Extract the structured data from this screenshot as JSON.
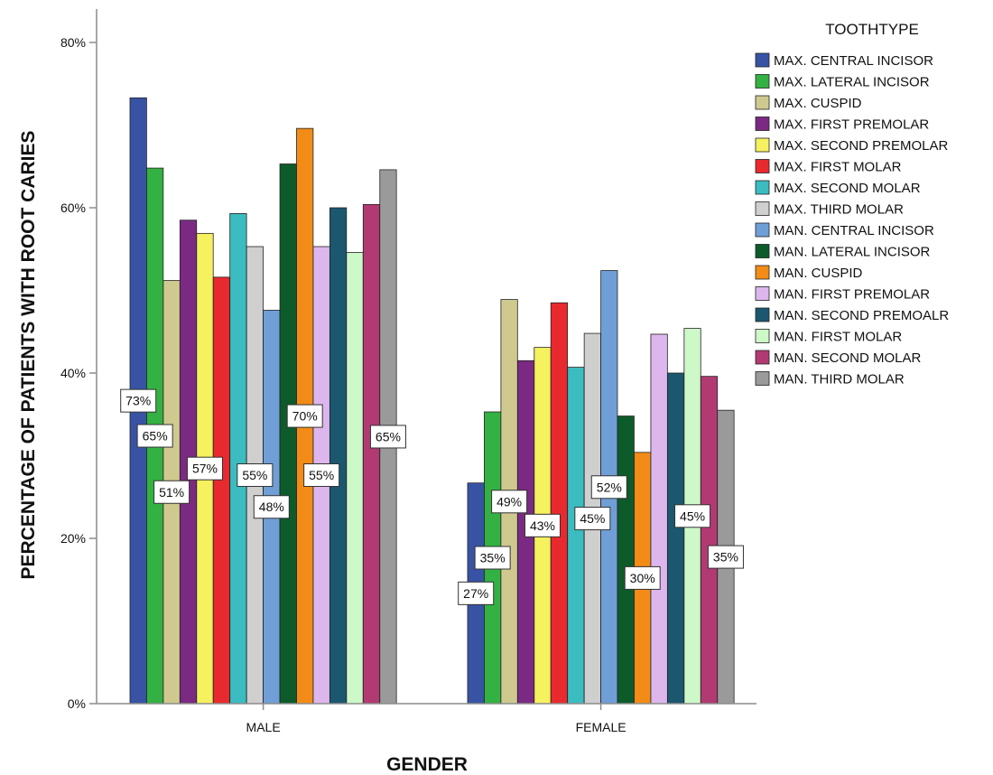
{
  "chart_data": {
    "type": "bar",
    "xlabel": "GENDER",
    "ylabel": "PERCENTAGE OF PATIENTS WITH ROOT CARIES",
    "ylim": [
      0,
      80
    ],
    "y_ticks": [
      "0%",
      "20%",
      "40%",
      "60%",
      "80%"
    ],
    "categories": [
      "MALE",
      "FEMALE"
    ],
    "legend_title": "TOOTHTYPE",
    "legend_position": "right",
    "series": [
      {
        "name": "MAX. CENTRAL INCISOR",
        "color": "#3853a4",
        "values": [
          73.3,
          26.7
        ],
        "labels": [
          "73%",
          "27%"
        ]
      },
      {
        "name": "MAX. LATERAL INCISOR",
        "color": "#33b143",
        "values": [
          64.8,
          35.3
        ],
        "labels": [
          "65%",
          "35%"
        ]
      },
      {
        "name": "MAX. CUSPID",
        "color": "#cfc98f",
        "values": [
          51.2,
          48.9
        ],
        "labels": [
          "51%",
          "49%"
        ]
      },
      {
        "name": "MAX. FIRST PREMOLAR",
        "color": "#7b2a83",
        "values": [
          58.5,
          41.5
        ],
        "labels": [
          null,
          null
        ]
      },
      {
        "name": "MAX. SECOND PREMOLAR",
        "color": "#f5f15f",
        "values": [
          56.9,
          43.1
        ],
        "labels": [
          "57%",
          "43%"
        ]
      },
      {
        "name": "MAX. FIRST MOLAR",
        "color": "#e82a2f",
        "values": [
          51.6,
          48.5
        ],
        "labels": [
          null,
          null
        ]
      },
      {
        "name": "MAX. SECOND MOLAR",
        "color": "#3bbcc0",
        "values": [
          59.3,
          40.7
        ],
        "labels": [
          null,
          null
        ]
      },
      {
        "name": "MAX. THIRD MOLAR",
        "color": "#cfcfcf",
        "values": [
          55.3,
          44.8
        ],
        "labels": [
          "55%",
          "45%"
        ]
      },
      {
        "name": "MAN. CENTRAL INCISOR",
        "color": "#6f9fd6",
        "values": [
          47.6,
          52.4
        ],
        "labels": [
          "48%",
          "52%"
        ]
      },
      {
        "name": "MAN. LATERAL INCISOR",
        "color": "#0d5b2a",
        "values": [
          65.3,
          34.8
        ],
        "labels": [
          null,
          null
        ]
      },
      {
        "name": "MAN. CUSPID",
        "color": "#f28c16",
        "values": [
          69.6,
          30.4
        ],
        "labels": [
          "70%",
          "30%"
        ]
      },
      {
        "name": "MAN. FIRST PREMOLAR",
        "color": "#dcb6ec",
        "values": [
          55.3,
          44.7
        ],
        "labels": [
          "55%",
          null
        ]
      },
      {
        "name": "MAN. SECOND PREMOALR",
        "color": "#1b5870",
        "values": [
          60.0,
          40.0
        ],
        "labels": [
          null,
          null
        ]
      },
      {
        "name": "MAN. FIRST MOLAR",
        "color": "#cdf8c8",
        "values": [
          54.6,
          45.4
        ],
        "labels": [
          null,
          "45%"
        ]
      },
      {
        "name": "MAN. SECOND MOLAR",
        "color": "#b13a73",
        "values": [
          60.4,
          39.6
        ],
        "labels": [
          null,
          null
        ]
      },
      {
        "name": "MAN. THIRD MOLAR",
        "color": "#9a9a9a",
        "values": [
          64.6,
          35.5
        ],
        "labels": [
          "65%",
          "35%"
        ]
      }
    ]
  }
}
